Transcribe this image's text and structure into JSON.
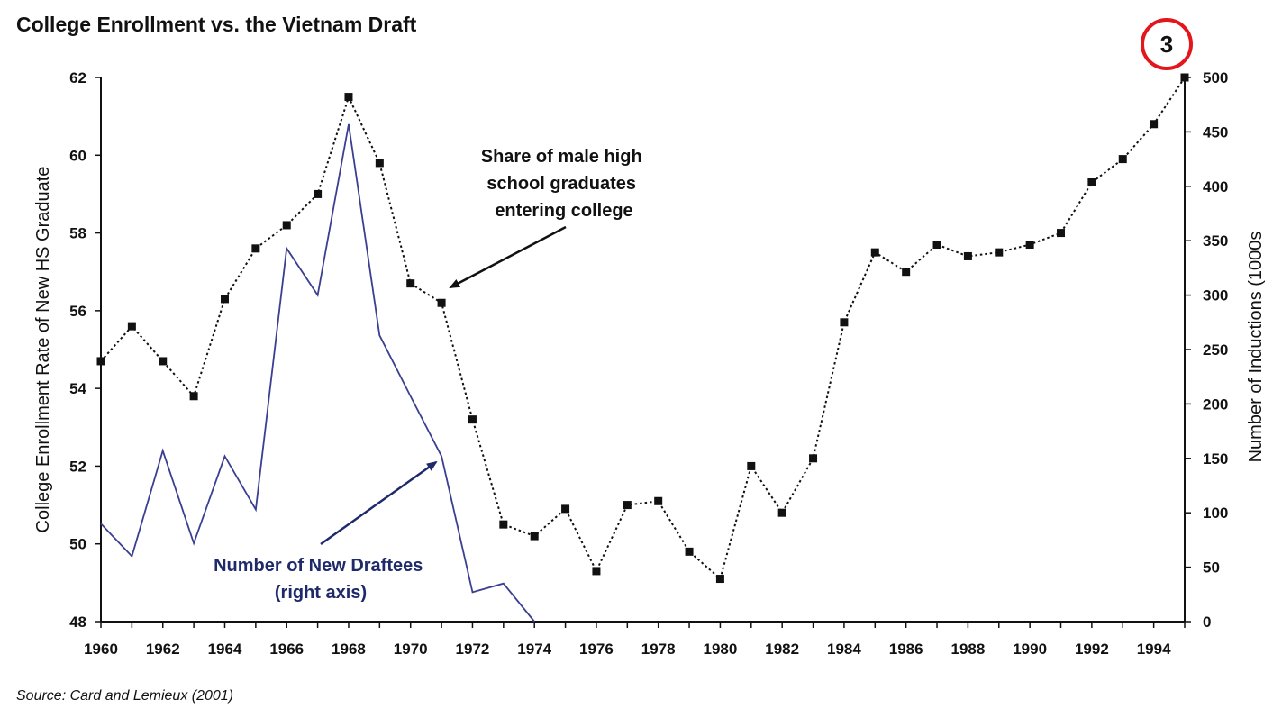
{
  "title": "College Enrollment vs. the Vietnam Draft",
  "source": "Source: Card and Lemieux (2001)",
  "badge": "3",
  "chart_data": {
    "type": "line",
    "xlabel": "",
    "ylabel_left": "College Enrollment Rate of New HS Graduate",
    "ylabel_right": "Number of Inductions (1000s",
    "xlim": [
      1960,
      1995
    ],
    "ylim_left": [
      48,
      62
    ],
    "ylim_right": [
      0,
      500
    ],
    "x_ticks": [
      "1960",
      "1962",
      "1964",
      "1966",
      "1968",
      "1970",
      "1972",
      "1974",
      "1976",
      "1978",
      "1980",
      "1982",
      "1984",
      "1986",
      "1988",
      "1990",
      "1992",
      "1994"
    ],
    "y_left_ticks": [
      "48",
      "50",
      "52",
      "54",
      "56",
      "58",
      "60",
      "62"
    ],
    "y_right_ticks": [
      "0",
      "50",
      "100",
      "150",
      "200",
      "250",
      "300",
      "350",
      "400",
      "450",
      "500"
    ],
    "grid": false,
    "series": [
      {
        "axis": "left",
        "color": "#111111",
        "style": "dotted-with-square-markers",
        "x": [
          1960,
          1961,
          1962,
          1963,
          1964,
          1965,
          1966,
          1967,
          1968,
          1969,
          1970,
          1971,
          1972,
          1973,
          1974,
          1975,
          1976,
          1977,
          1978,
          1979,
          1980,
          1981,
          1982,
          1983,
          1984,
          1985,
          1986,
          1987,
          1988,
          1989,
          1990,
          1991,
          1992,
          1993,
          1994,
          1995
        ],
        "values": [
          54.7,
          55.6,
          54.7,
          53.8,
          56.3,
          57.6,
          58.2,
          59.0,
          61.5,
          59.8,
          56.7,
          56.2,
          53.2,
          50.5,
          50.2,
          50.9,
          49.3,
          51.0,
          51.1,
          49.8,
          49.1,
          52.0,
          50.8,
          52.2,
          55.7,
          57.5,
          57.0,
          57.7,
          57.4,
          57.5,
          57.7,
          58.0,
          59.3,
          59.9,
          60.8,
          62.0
        ]
      },
      {
        "axis": "right",
        "color": "#3a3f91",
        "style": "solid",
        "x": [
          1960,
          1961,
          1962,
          1963,
          1964,
          1965,
          1966,
          1967,
          1968,
          1969,
          1970,
          1971,
          1972,
          1973,
          1974
        ],
        "values": [
          90,
          60,
          157,
          72,
          152,
          103,
          343,
          300,
          457,
          263,
          207,
          152,
          27,
          35,
          0
        ]
      }
    ],
    "annotations": [
      {
        "text_lines": [
          "Share of male high",
          "school graduates",
          "entering college"
        ],
        "color": "#111111"
      },
      {
        "text_lines": [
          "Number of New Draftees",
          "(right axis)"
        ],
        "color": "#1f2a6b"
      }
    ]
  }
}
